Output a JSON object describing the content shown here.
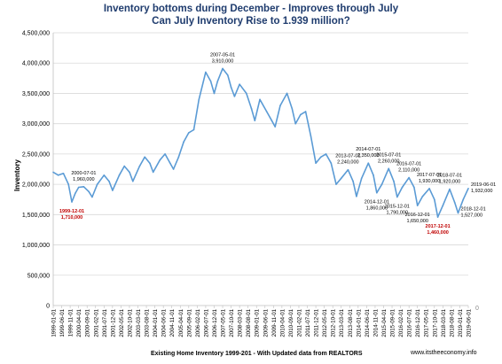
{
  "chart_data": {
    "type": "line",
    "title": "Inventory bottoms during  December - Improves through July",
    "subtitle": "Can July Inventory Rise to 1.939 million?",
    "ylabel": "Inventory",
    "xlabel": "Existing Home Inventory 1999-201 - With Updated data from REALTORS",
    "credit": "www.itstheeconomy.info",
    "ylim": [
      0,
      4500000
    ],
    "yticks": [
      "0",
      "500,000",
      "1,000,000",
      "1,500,000",
      "2,000,000",
      "2,500,000",
      "3,000,000",
      "3,500,000",
      "4,000,000",
      "4,500,000"
    ],
    "xticks": [
      "1999-01-01",
      "1999-06-01",
      "1999-11-01",
      "2000-04-01",
      "2000-09-01",
      "2001-02-01",
      "2001-07-01",
      "2001-12-01",
      "2002-05-01",
      "2002-10-01",
      "2003-03-01",
      "2003-08-01",
      "2004-01-01",
      "2004-06-01",
      "2004-11-01",
      "2005-04-01",
      "2005-09-01",
      "2006-02-01",
      "2006-07-01",
      "2006-12-01",
      "2007-05-01",
      "2007-10-01",
      "2008-03-01",
      "2008-08-01",
      "2009-01-01",
      "2009-06-01",
      "2009-11-01",
      "2010-04-01",
      "2010-09-01",
      "2011-02-01",
      "2011-07-01",
      "2011-12-01",
      "2012-05-01",
      "2012-10-01",
      "2013-03-01",
      "2013-08-01",
      "2014-01-01",
      "2014-06-01",
      "2014-11-01",
      "2015-04-01",
      "2015-09-01",
      "2016-02-01",
      "2016-07-01",
      "2016-12-01",
      "2017-05-01",
      "2017-10-01",
      "2018-03-01",
      "2018-08-01",
      "2019-01-01",
      "2019-06-01"
    ],
    "right_axis_label": "0",
    "line_color": "#5b9bd5",
    "series": [
      {
        "x": [
          "1999-01-01",
          "1999-04-01",
          "1999-07-01",
          "1999-10-01",
          "1999-12-01",
          "2000-02-01",
          "2000-04-01",
          "2000-07-01",
          "2000-10-01",
          "2000-12-01",
          "2001-03-01",
          "2001-07-01",
          "2001-10-01",
          "2001-12-01",
          "2002-04-01",
          "2002-07-01",
          "2002-10-01",
          "2002-12-01",
          "2003-04-01",
          "2003-07-01",
          "2003-10-01",
          "2003-12-01",
          "2004-04-01",
          "2004-07-01",
          "2004-10-01",
          "2004-12-01",
          "2005-03-01",
          "2005-06-01",
          "2005-09-01",
          "2005-12-01",
          "2006-03-01",
          "2006-07-01",
          "2006-10-01",
          "2006-12-01",
          "2007-02-01",
          "2007-05-01",
          "2007-08-01",
          "2007-10-01",
          "2007-12-01",
          "2008-03-01",
          "2008-07-01",
          "2008-10-01",
          "2008-12-01",
          "2009-03-01",
          "2009-07-01",
          "2009-10-01",
          "2009-12-01",
          "2010-03-01",
          "2010-07-01",
          "2010-10-01",
          "2010-12-01",
          "2011-03-01",
          "2011-06-01",
          "2011-09-01",
          "2011-12-01",
          "2012-03-01",
          "2012-06-01",
          "2012-09-01",
          "2012-12-01",
          "2013-03-01",
          "2013-07-01",
          "2013-10-01",
          "2013-12-01",
          "2014-03-01",
          "2014-07-01",
          "2014-10-01",
          "2014-12-01",
          "2015-03-01",
          "2015-07-01",
          "2015-10-01",
          "2015-12-01",
          "2016-03-01",
          "2016-07-01",
          "2016-10-01",
          "2016-12-01",
          "2017-03-01",
          "2017-07-01",
          "2017-10-01",
          "2017-12-01",
          "2018-03-01",
          "2018-07-01",
          "2018-10-01",
          "2018-12-01",
          "2019-03-01",
          "2019-06-01"
        ],
        "y": [
          2200000,
          2150000,
          2180000,
          2000000,
          1710000,
          1850000,
          1950000,
          1960000,
          1880000,
          1790000,
          2000000,
          2150000,
          2050000,
          1900000,
          2150000,
          2300000,
          2200000,
          2050000,
          2300000,
          2450000,
          2350000,
          2200000,
          2400000,
          2500000,
          2350000,
          2250000,
          2450000,
          2700000,
          2850000,
          2900000,
          3400000,
          3850000,
          3700000,
          3500000,
          3700000,
          3910000,
          3800000,
          3600000,
          3450000,
          3650000,
          3500000,
          3250000,
          3050000,
          3400000,
          3200000,
          3050000,
          2950000,
          3300000,
          3500000,
          3250000,
          3000000,
          3150000,
          3200000,
          2800000,
          2350000,
          2450000,
          2500000,
          2350000,
          2000000,
          2100000,
          2240000,
          2050000,
          1800000,
          2100000,
          2350000,
          2150000,
          1860000,
          2000000,
          2260000,
          2050000,
          1790000,
          1950000,
          2110000,
          1950000,
          1650000,
          1800000,
          1930000,
          1750000,
          1460000,
          1650000,
          1920000,
          1700000,
          1527000,
          1750000,
          1932000
        ]
      }
    ],
    "annotations": [
      {
        "date": "1999-12-01",
        "value": "1,710,000",
        "x": "1999-12-01",
        "y": 1710000,
        "color": "#c00000",
        "pos": "below"
      },
      {
        "date": "2000-07-01",
        "value": "1,960,000",
        "x": "2000-07-01",
        "y": 1960000,
        "color": "#000000",
        "pos": "above"
      },
      {
        "date": "2007-05-01",
        "value": "3,910,000",
        "x": "2007-05-01",
        "y": 3910000,
        "color": "#000000",
        "pos": "above"
      },
      {
        "date": "2013-07-01",
        "value": "2,240,000",
        "x": "2013-07-01",
        "y": 2240000,
        "color": "#000000",
        "pos": "above"
      },
      {
        "date": "2014-07-01",
        "value": "2,350,000",
        "x": "2014-07-01",
        "y": 2350000,
        "color": "#000000",
        "pos": "above"
      },
      {
        "date": "2014-12-01",
        "value": "1,860,000",
        "x": "2014-12-01",
        "y": 1860000,
        "color": "#000000",
        "pos": "below"
      },
      {
        "date": "2015-07-01",
        "value": "2,260,000",
        "x": "2015-07-01",
        "y": 2260000,
        "color": "#000000",
        "pos": "above"
      },
      {
        "date": "2015-12-01",
        "value": "1,790,000",
        "x": "2015-12-01",
        "y": 1790000,
        "color": "#000000",
        "pos": "below"
      },
      {
        "date": "2016-07-01",
        "value": "2,110,000",
        "x": "2016-07-01",
        "y": 2110000,
        "color": "#000000",
        "pos": "above"
      },
      {
        "date": "2016-12-01",
        "value": "1,650,000",
        "x": "2016-12-01",
        "y": 1650000,
        "color": "#000000",
        "pos": "below"
      },
      {
        "date": "2017-07-01",
        "value": "1,930,000",
        "x": "2017-07-01",
        "y": 1930000,
        "color": "#000000",
        "pos": "above"
      },
      {
        "date": "2017-12-01",
        "value": "1,460,000",
        "x": "2017-12-01",
        "y": 1460000,
        "color": "#c00000",
        "pos": "below"
      },
      {
        "date": "2018-07-01",
        "value": "1,920,000",
        "x": "2018-07-01",
        "y": 1920000,
        "color": "#000000",
        "pos": "above"
      },
      {
        "date": "2018-12-01",
        "value": "1,527,000",
        "x": "2018-12-01",
        "y": 1527000,
        "color": "#000000",
        "pos": "right"
      },
      {
        "date": "2019-06-01",
        "value": "1,932,000",
        "x": "2019-06-01",
        "y": 1932000,
        "color": "#000000",
        "pos": "right"
      }
    ]
  }
}
